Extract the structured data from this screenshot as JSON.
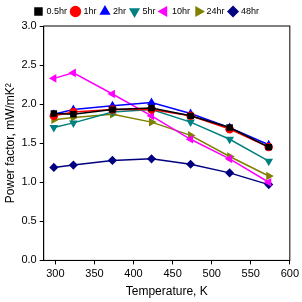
{
  "chart_data": {
    "type": "line",
    "x_label": "Temperature, K",
    "y_label": "Power factor, mW/mK²",
    "x": [
      298,
      323,
      373,
      423,
      473,
      523,
      573
    ],
    "series": [
      {
        "name": "0.5hr",
        "color": "#000000",
        "marker": "square",
        "values": [
          1.88,
          1.87,
          1.93,
          1.95,
          1.85,
          1.7,
          1.45
        ]
      },
      {
        "name": "1hr",
        "color": "#ff0000",
        "marker": "circle",
        "values": [
          1.85,
          1.9,
          1.93,
          1.93,
          1.85,
          1.68,
          1.45
        ]
      },
      {
        "name": "2hr",
        "color": "#0000ff",
        "marker": "triangle-up",
        "values": [
          1.87,
          1.93,
          1.98,
          2.02,
          1.88,
          1.7,
          1.48
        ]
      },
      {
        "name": "5hr",
        "color": "#008080",
        "marker": "triangle-down",
        "values": [
          1.7,
          1.76,
          1.9,
          1.93,
          1.77,
          1.55,
          1.27
        ]
      },
      {
        "name": "10hr",
        "color": "#ff00ff",
        "marker": "triangle-left",
        "values": [
          2.33,
          2.4,
          2.13,
          1.85,
          1.55,
          1.3,
          1.0
        ]
      },
      {
        "name": "24hr",
        "color": "#808000",
        "marker": "triangle-right",
        "values": [
          1.8,
          1.83,
          1.87,
          1.77,
          1.6,
          1.33,
          1.08
        ]
      },
      {
        "name": "48hr",
        "color": "#000080",
        "marker": "diamond",
        "values": [
          1.19,
          1.22,
          1.28,
          1.3,
          1.23,
          1.12,
          0.97
        ]
      }
    ],
    "xlim": [
      285,
      600
    ],
    "xticks": [
      300,
      350,
      400,
      450,
      500,
      550,
      600
    ],
    "ylim": [
      0,
      3
    ],
    "yticks": [
      {
        "value": 0,
        "label": "0.0"
      },
      0.5,
      {
        "value": 1,
        "label": "1.0"
      },
      1.5,
      {
        "value": 2,
        "label": "2.0"
      },
      2.5,
      {
        "value": 3,
        "label": "3.0"
      }
    ],
    "grid": false,
    "legend": "top"
  }
}
